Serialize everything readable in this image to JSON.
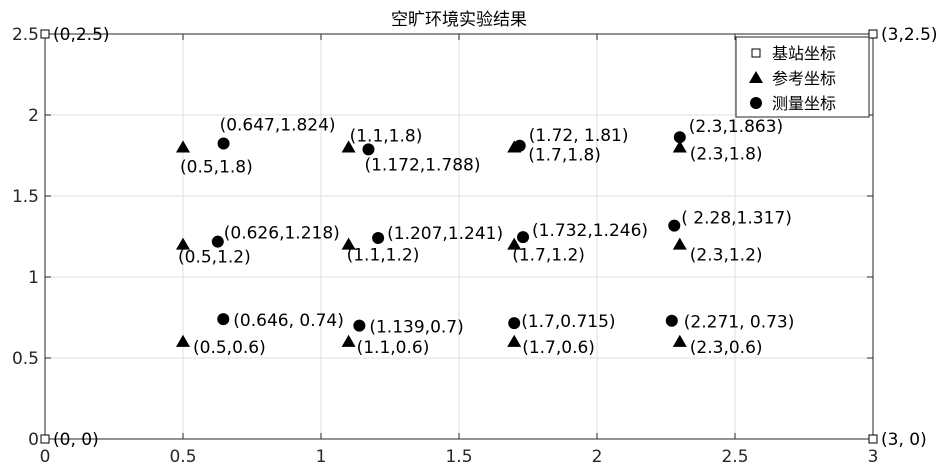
{
  "chart_data": {
    "type": "scatter",
    "title": "空旷环境实验结果",
    "xlabel": "",
    "ylabel": "",
    "xlim": [
      0,
      3
    ],
    "ylim": [
      0,
      2.5
    ],
    "xticks": [
      "0",
      "0.5",
      "1",
      "1.5",
      "2",
      "2.5",
      "3"
    ],
    "yticks": [
      "0",
      "0.5",
      "1",
      "1.5",
      "2",
      "2.5"
    ],
    "grid": true,
    "legend_position": "top-right",
    "series": [
      {
        "name": "基站坐标",
        "marker": "square",
        "points": [
          {
            "x": 0,
            "y": 0,
            "label": "(0,  0)"
          },
          {
            "x": 0,
            "y": 2.5,
            "label": "(0,2.5)"
          },
          {
            "x": 3,
            "y": 2.5,
            "label": "(3,2.5)"
          },
          {
            "x": 3,
            "y": 0,
            "label": "(3,  0)"
          }
        ]
      },
      {
        "name": "参考坐标",
        "marker": "triangle",
        "points": [
          {
            "x": 0.5,
            "y": 1.8,
            "label": "(0.5,1.8)"
          },
          {
            "x": 1.1,
            "y": 1.8,
            "label": "(1.1,1.8)"
          },
          {
            "x": 1.7,
            "y": 1.8,
            "label": "(1.7,1.8)"
          },
          {
            "x": 2.3,
            "y": 1.8,
            "label": "(2.3,1.8)"
          },
          {
            "x": 0.5,
            "y": 1.2,
            "label": "(0.5,1.2)"
          },
          {
            "x": 1.1,
            "y": 1.2,
            "label": "(1.1,1.2)"
          },
          {
            "x": 1.7,
            "y": 1.2,
            "label": "(1.7,1.2)"
          },
          {
            "x": 2.3,
            "y": 1.2,
            "label": "(2.3,1.2)"
          },
          {
            "x": 0.5,
            "y": 0.6,
            "label": "(0.5,0.6)"
          },
          {
            "x": 1.1,
            "y": 0.6,
            "label": "(1.1,0.6)"
          },
          {
            "x": 1.7,
            "y": 0.6,
            "label": "(1.7,0.6)"
          },
          {
            "x": 2.3,
            "y": 0.6,
            "label": "(2.3,0.6)"
          }
        ]
      },
      {
        "name": "测量坐标",
        "marker": "circle",
        "points": [
          {
            "x": 0.647,
            "y": 1.824,
            "label": "(0.647,1.824)"
          },
          {
            "x": 1.172,
            "y": 1.788,
            "label": "(1.172,1.788)"
          },
          {
            "x": 1.72,
            "y": 1.81,
            "label": "(1.72, 1.81)"
          },
          {
            "x": 2.3,
            "y": 1.863,
            "label": "(2.3,1.863)"
          },
          {
            "x": 0.626,
            "y": 1.218,
            "label": "(0.626,1.218)"
          },
          {
            "x": 1.207,
            "y": 1.241,
            "label": "(1.207,1.241)"
          },
          {
            "x": 1.732,
            "y": 1.246,
            "label": "(1.732,1.246)"
          },
          {
            "x": 2.28,
            "y": 1.317,
            "label": "( 2.28,1.317)"
          },
          {
            "x": 0.646,
            "y": 0.74,
            "label": "(0.646, 0.74)"
          },
          {
            "x": 1.139,
            "y": 0.7,
            "label": "(1.139,0.7)"
          },
          {
            "x": 1.7,
            "y": 0.715,
            "label": "(1.7,0.715)"
          },
          {
            "x": 2.271,
            "y": 0.73,
            "label": "(2.271, 0.73)"
          }
        ]
      }
    ]
  }
}
